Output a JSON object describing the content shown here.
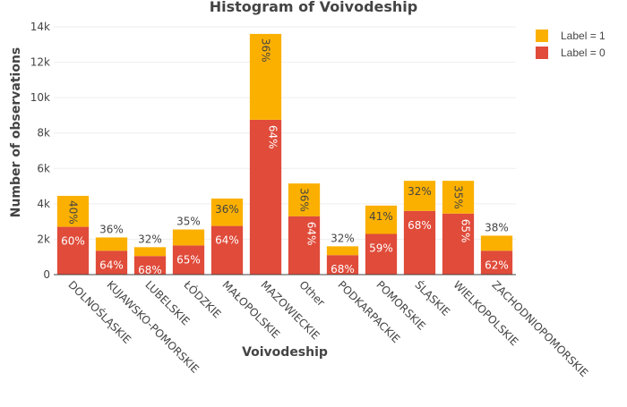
{
  "chart_data": {
    "type": "bar",
    "stacked": true,
    "title": "Histogram of Voivodeship",
    "xlabel": "Voivodeship",
    "ylabel": "Number of observations",
    "ylim": [
      0,
      14000
    ],
    "yticks": [
      0,
      2000,
      4000,
      6000,
      8000,
      10000,
      12000,
      14000
    ],
    "ytick_labels": [
      "0",
      "2k",
      "4k",
      "6k",
      "8k",
      "10k",
      "12k",
      "14k"
    ],
    "grid": true,
    "legend_position": "top-right",
    "categories": [
      "DOLNOŚLĄSKIE",
      "KUJAWSKO-POMORSKIE",
      "LUBELSKIE",
      "ŁÓDZKIE",
      "MAŁOPOLSKIE",
      "MAZOWIECKIE",
      "Other",
      "PODKARPACKIE",
      "POMORSKIE",
      "ŚLĄSKIE",
      "WIELKOPOLSKIE",
      "ZACHODNIOPOMORSKIE"
    ],
    "series": [
      {
        "name": "Label = 0",
        "color": "#e04b3a",
        "values": [
          2700,
          1350,
          1050,
          1650,
          2750,
          8750,
          3300,
          1100,
          2300,
          3600,
          3450,
          1350
        ],
        "labels": [
          "60%",
          "64%",
          "68%",
          "65%",
          "64%",
          "64%",
          "64%",
          "68%",
          "59%",
          "68%",
          "65%",
          "62%"
        ]
      },
      {
        "name": "Label = 1",
        "color": "#fbb000",
        "values": [
          1750,
          750,
          500,
          900,
          1550,
          4850,
          1850,
          500,
          1600,
          1700,
          1850,
          850
        ],
        "labels": [
          "40%",
          "36%",
          "32%",
          "35%",
          "36%",
          "36%",
          "36%",
          "32%",
          "41%",
          "32%",
          "35%",
          "38%"
        ]
      }
    ]
  }
}
